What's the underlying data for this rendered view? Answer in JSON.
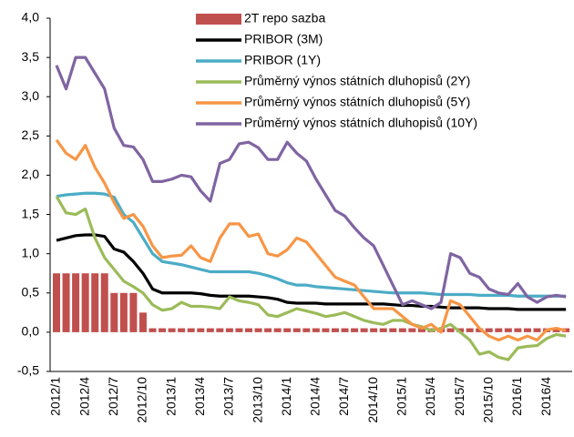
{
  "chart_data": {
    "type": "combo",
    "categories": [
      "2012/1",
      null,
      null,
      "2012/4",
      null,
      null,
      "2012/7",
      null,
      null,
      "2012/10",
      null,
      null,
      "2013/1",
      null,
      null,
      "2013/4",
      null,
      null,
      "2013/7",
      null,
      null,
      "2013/10",
      null,
      null,
      "2014/1",
      null,
      null,
      "2014/4",
      null,
      null,
      "2014/7",
      null,
      null,
      "2014/10",
      null,
      null,
      "2015/1",
      null,
      null,
      "2015/4",
      null,
      null,
      "2015/7",
      null,
      null,
      "2015/10",
      null,
      null,
      "2016/1",
      null,
      null,
      "2016/4",
      null,
      null
    ],
    "ylim": [
      -0.5,
      4.0
    ],
    "yticks": [
      {
        "value": 4.0,
        "label": "4,0"
      },
      {
        "value": 3.5,
        "label": "3,5"
      },
      {
        "value": 3.0,
        "label": "3,0"
      },
      {
        "value": 2.5,
        "label": "2,5"
      },
      {
        "value": 2.0,
        "label": "2,0"
      },
      {
        "value": 1.5,
        "label": "1,5"
      },
      {
        "value": 1.0,
        "label": "1,0"
      },
      {
        "value": 0.5,
        "label": "0,5"
      },
      {
        "value": 0.0,
        "label": "0,0"
      },
      {
        "value": -0.5,
        "label": "-0,5"
      }
    ],
    "series": [
      {
        "name": "2T repo sazba",
        "type": "bar",
        "color": "#c0504d",
        "values": [
          0.75,
          0.75,
          0.75,
          0.75,
          0.75,
          0.75,
          0.5,
          0.5,
          0.5,
          0.25,
          0.05,
          0.05,
          0.05,
          0.05,
          0.05,
          0.05,
          0.05,
          0.05,
          0.05,
          0.05,
          0.05,
          0.05,
          0.05,
          0.05,
          0.05,
          0.05,
          0.05,
          0.05,
          0.05,
          0.05,
          0.05,
          0.05,
          0.05,
          0.05,
          0.05,
          0.05,
          0.05,
          0.05,
          0.05,
          0.05,
          0.05,
          0.05,
          0.05,
          0.05,
          0.05,
          0.05,
          0.05,
          0.05,
          0.05,
          0.05,
          0.05,
          0.05,
          0.05,
          0.05
        ]
      },
      {
        "name": "PRIBOR (3M)",
        "type": "line",
        "color": "#000000",
        "values": [
          1.17,
          1.2,
          1.23,
          1.24,
          1.24,
          1.22,
          1.06,
          1.02,
          0.9,
          0.75,
          0.55,
          0.5,
          0.5,
          0.5,
          0.5,
          0.49,
          0.47,
          0.46,
          0.46,
          0.46,
          0.46,
          0.45,
          0.44,
          0.42,
          0.38,
          0.37,
          0.37,
          0.37,
          0.36,
          0.36,
          0.36,
          0.36,
          0.36,
          0.36,
          0.36,
          0.35,
          0.34,
          0.34,
          0.33,
          0.33,
          0.32,
          0.31,
          0.31,
          0.31,
          0.31,
          0.3,
          0.3,
          0.3,
          0.29,
          0.29,
          0.29,
          0.29,
          0.29,
          0.29
        ]
      },
      {
        "name": "PRIBOR (1Y)",
        "type": "line",
        "color": "#4bacc6",
        "values": [
          1.73,
          1.75,
          1.76,
          1.77,
          1.77,
          1.76,
          1.72,
          1.5,
          1.4,
          1.2,
          1.0,
          0.9,
          0.88,
          0.86,
          0.83,
          0.8,
          0.77,
          0.77,
          0.77,
          0.77,
          0.77,
          0.75,
          0.72,
          0.68,
          0.63,
          0.6,
          0.6,
          0.58,
          0.57,
          0.56,
          0.55,
          0.54,
          0.53,
          0.52,
          0.51,
          0.5,
          0.5,
          0.5,
          0.5,
          0.49,
          0.48,
          0.48,
          0.48,
          0.48,
          0.47,
          0.47,
          0.47,
          0.47,
          0.46,
          0.46,
          0.46,
          0.46,
          0.46,
          0.46
        ]
      },
      {
        "name": "Průměrný výnos státních dluhopisů (2Y)",
        "type": "line",
        "color": "#9bbb59",
        "values": [
          1.73,
          1.52,
          1.5,
          1.57,
          1.2,
          0.95,
          0.8,
          0.65,
          0.58,
          0.5,
          0.35,
          0.28,
          0.3,
          0.38,
          0.33,
          0.33,
          0.32,
          0.3,
          0.45,
          0.4,
          0.38,
          0.35,
          0.22,
          0.2,
          0.25,
          0.3,
          0.27,
          0.24,
          0.2,
          0.22,
          0.25,
          0.2,
          0.15,
          0.12,
          0.1,
          0.15,
          0.15,
          0.1,
          0.07,
          0.02,
          0.05,
          0.1,
          0.0,
          -0.1,
          -0.28,
          -0.25,
          -0.32,
          -0.35,
          -0.2,
          -0.18,
          -0.17,
          -0.08,
          -0.03,
          -0.05
        ]
      },
      {
        "name": "Průměrný výnos státních dluhopisů (5Y)",
        "type": "line",
        "color": "#f79646",
        "values": [
          2.45,
          2.28,
          2.2,
          2.38,
          2.1,
          1.9,
          1.65,
          1.45,
          1.5,
          1.35,
          1.1,
          0.95,
          0.97,
          0.98,
          1.1,
          0.95,
          0.9,
          1.2,
          1.38,
          1.38,
          1.22,
          1.25,
          1.0,
          0.97,
          1.05,
          1.2,
          1.15,
          1.0,
          0.85,
          0.7,
          0.65,
          0.6,
          0.45,
          0.3,
          0.3,
          0.3,
          0.2,
          0.1,
          0.05,
          0.1,
          0.0,
          0.4,
          0.35,
          0.2,
          0.05,
          -0.05,
          -0.1,
          -0.05,
          -0.1,
          -0.05,
          -0.1,
          0.03,
          0.05,
          0.02
        ]
      },
      {
        "name": "Průměrný výnos státních dluhopisů (10Y)",
        "type": "line",
        "color": "#8064a2",
        "values": [
          3.4,
          3.1,
          3.5,
          3.5,
          3.3,
          3.1,
          2.6,
          2.38,
          2.36,
          2.2,
          1.92,
          1.92,
          1.95,
          2.0,
          1.98,
          1.8,
          1.67,
          2.15,
          2.2,
          2.4,
          2.42,
          2.35,
          2.2,
          2.2,
          2.42,
          2.28,
          2.18,
          1.95,
          1.75,
          1.55,
          1.48,
          1.33,
          1.2,
          1.1,
          0.85,
          0.6,
          0.35,
          0.4,
          0.35,
          0.3,
          0.38,
          1.0,
          0.95,
          0.75,
          0.7,
          0.55,
          0.5,
          0.48,
          0.62,
          0.45,
          0.38,
          0.45,
          0.47,
          0.45
        ]
      }
    ]
  }
}
